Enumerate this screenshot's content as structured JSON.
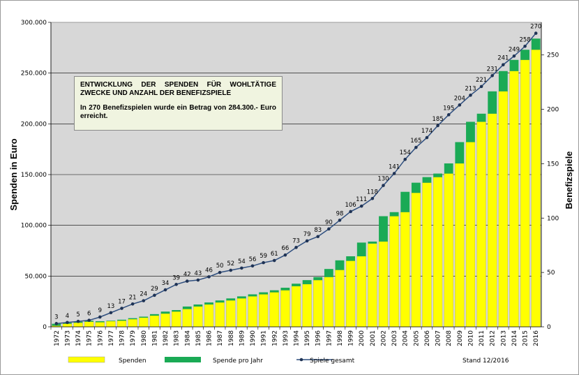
{
  "chart_data": {
    "type": "bar",
    "categories": [
      "1972",
      "1973",
      "1974",
      "1975",
      "1976",
      "1977",
      "1978",
      "1979",
      "1980",
      "1981",
      "1982",
      "1983",
      "1984",
      "1985",
      "1986",
      "1987",
      "1988",
      "1989",
      "1990",
      "1991",
      "1992",
      "1993",
      "1994",
      "1995",
      "1996",
      "1997",
      "1998",
      "1999",
      "2000",
      "2001",
      "2002",
      "2003",
      "2004",
      "2005",
      "2006",
      "2007",
      "2008",
      "2009",
      "2010",
      "2011",
      "2012",
      "2013",
      "2014",
      "2015",
      "2016"
    ],
    "series": [
      {
        "name": "Spenden",
        "kind": "bar",
        "color": "#ffff00",
        "values": [
          1000,
          3000,
          4000,
          5000,
          4500,
          5500,
          6000,
          7500,
          9000,
          11000,
          13000,
          15000,
          17500,
          20000,
          22000,
          24000,
          26000,
          28000,
          30000,
          32000,
          34000,
          36000,
          40000,
          42000,
          46000,
          49000,
          56000,
          65000,
          69500,
          82000,
          84000,
          109000,
          113000,
          132000,
          142000,
          147500,
          151000,
          161000,
          182000,
          202000,
          210000,
          232000,
          252000,
          263000,
          273000
        ]
      },
      {
        "name": "Spende pro Jahr",
        "kind": "bar-stacked",
        "color": "#1aaa55",
        "values": [
          2000,
          1000,
          1000,
          1000,
          1000,
          500,
          1000,
          1000,
          1000,
          1500,
          2000,
          1500,
          2500,
          2000,
          2000,
          2000,
          2000,
          2000,
          2000,
          2000,
          2000,
          2500,
          2500,
          4000,
          3000,
          8000,
          9500,
          4500,
          13500,
          2000,
          25000,
          4000,
          20000,
          10000,
          5500,
          3500,
          10000,
          21000,
          20000,
          8000,
          22000,
          20000,
          11000,
          10000,
          11000
        ]
      },
      {
        "name": "Spiele gesamt",
        "kind": "line",
        "color": "#2f4f7f",
        "values": [
          3,
          4,
          5,
          6,
          9,
          13,
          17,
          21,
          24,
          29,
          34,
          39,
          42,
          43,
          46,
          50,
          52,
          54,
          56,
          59,
          61,
          66,
          73,
          79,
          83,
          90,
          98,
          106,
          111,
          118,
          130,
          141,
          154,
          165,
          174,
          185,
          195,
          204,
          213,
          221,
          231,
          241,
          249,
          258,
          270
        ]
      }
    ],
    "ylabel": "Spenden in Euro",
    "y2label": "Benefizspiele",
    "ylim": [
      0,
      300000
    ],
    "y2lim": [
      0,
      280
    ],
    "yticks": [
      "0",
      "50.000",
      "100.000",
      "150.000",
      "200.000",
      "250.000",
      "300.000"
    ],
    "y2ticks": [
      "0",
      "50",
      "100",
      "150",
      "200",
      "250"
    ],
    "grid": true,
    "legend_position": "bottom"
  },
  "legend": {
    "spenden": "Spenden",
    "spende_pro_jahr": "Spende pro Jahr",
    "spiele_gesamt": "Spiele gesamt"
  },
  "stand": "Stand 12/2016",
  "info": {
    "heading": "ENTWICKLUNG DER SPENDEN FÜR WOHLTÄTIGE ZWECKE UND ANZAHL DER BENEFIZSPIELE",
    "text": "In 270 Benefizspielen wurde ein Betrag von 284.300.- Euro erreicht."
  },
  "colors": {
    "plot_bg": "#d7d7d7",
    "bar_total": "#ffff00",
    "bar_year": "#1aaa55",
    "line": "#2f4f7f"
  }
}
